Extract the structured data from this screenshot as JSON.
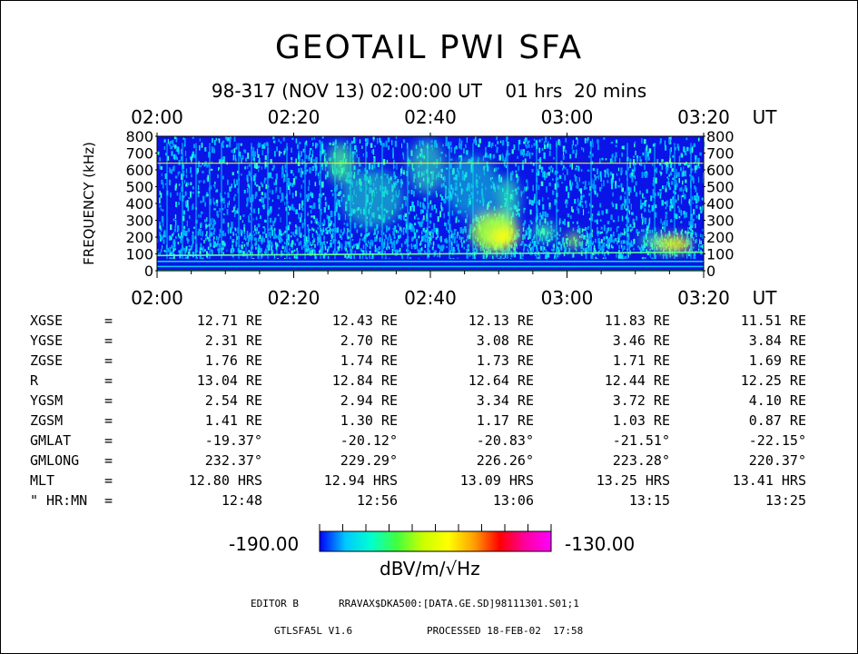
{
  "title": "GEOTAIL PWI SFA",
  "subtitle": "98-317 (NOV 13) 02:00:00 UT    01 hrs  20 mins",
  "chart_data": {
    "type": "heatmap",
    "title": "GEOTAIL PWI SFA",
    "xlabel": "UT",
    "ylabel": "FREQUENCY (kHz)",
    "x_tick_labels": [
      "02:00",
      "02:20",
      "02:40",
      "03:00",
      "03:20"
    ],
    "x_unit_label": "UT",
    "x_range": [
      "02:00",
      "03:20"
    ],
    "y_tick_labels": [
      "800",
      "700",
      "600",
      "500",
      "400",
      "300",
      "200",
      "100",
      "0"
    ],
    "y_range": [
      0,
      800
    ],
    "colorbar": {
      "min_label": "-190.00",
      "max_label": "-130.00",
      "unit_label": "dBV/m/√Hz",
      "colors": [
        "#0000ff",
        "#00c8ff",
        "#00ffd0",
        "#40ff40",
        "#c8ff00",
        "#ffff00",
        "#ffa000",
        "#ff0000",
        "#ff00a0",
        "#ff00ff"
      ]
    },
    "features": [
      {
        "name": "constant line",
        "freq_khz": 640,
        "color": "#ffff00"
      },
      {
        "name": "emission patch",
        "time": "02:50",
        "freq_khz": [
          100,
          350
        ],
        "level": "high"
      },
      {
        "name": "emission patch",
        "time": "03:17",
        "freq_khz": [
          100,
          250
        ],
        "level": "high"
      }
    ]
  },
  "ephemeris": {
    "rows": [
      {
        "label": "XGSE",
        "eq": "=",
        "values": [
          "12.71 RE",
          "12.43 RE",
          "12.13 RE",
          "11.83 RE",
          "11.51 RE"
        ]
      },
      {
        "label": "YGSE",
        "eq": "=",
        "values": [
          "2.31 RE",
          "2.70 RE",
          "3.08 RE",
          "3.46 RE",
          "3.84 RE"
        ]
      },
      {
        "label": "ZGSE",
        "eq": "=",
        "values": [
          "1.76 RE",
          "1.74 RE",
          "1.73 RE",
          "1.71 RE",
          "1.69 RE"
        ]
      },
      {
        "label": "R",
        "eq": "=",
        "values": [
          "13.04 RE",
          "12.84 RE",
          "12.64 RE",
          "12.44 RE",
          "12.25 RE"
        ]
      },
      {
        "label": "YGSM",
        "eq": "=",
        "values": [
          "2.54 RE",
          "2.94 RE",
          "3.34 RE",
          "3.72 RE",
          "4.10 RE"
        ]
      },
      {
        "label": "ZGSM",
        "eq": "=",
        "values": [
          "1.41 RE",
          "1.30 RE",
          "1.17 RE",
          "1.03 RE",
          "0.87 RE"
        ]
      },
      {
        "label": "GMLAT",
        "eq": "=",
        "values": [
          "-19.37°",
          "-20.12°",
          "-20.83°",
          "-21.51°",
          "-22.15°"
        ]
      },
      {
        "label": "GMLONG",
        "eq": "=",
        "values": [
          "232.37°",
          "229.29°",
          "226.26°",
          "223.28°",
          "220.37°"
        ]
      },
      {
        "label": "MLT",
        "eq": "=",
        "values": [
          "12.80 HRS",
          "12.94 HRS",
          "13.09 HRS",
          "13.25 HRS",
          "13.41 HRS"
        ]
      },
      {
        "label": "\" HR:MN",
        "eq": "=",
        "values": [
          "12:48",
          "12:56",
          "13:06",
          "13:15",
          "13:25"
        ]
      }
    ]
  },
  "footer": {
    "editor": "EDITOR B",
    "path": "RRAVAX$DKA500:[DATA.GE.SD]98111301.S01;1",
    "program": "GTLSFA5L V1.6",
    "processed": "PROCESSED 18-FEB-02  17:58"
  }
}
